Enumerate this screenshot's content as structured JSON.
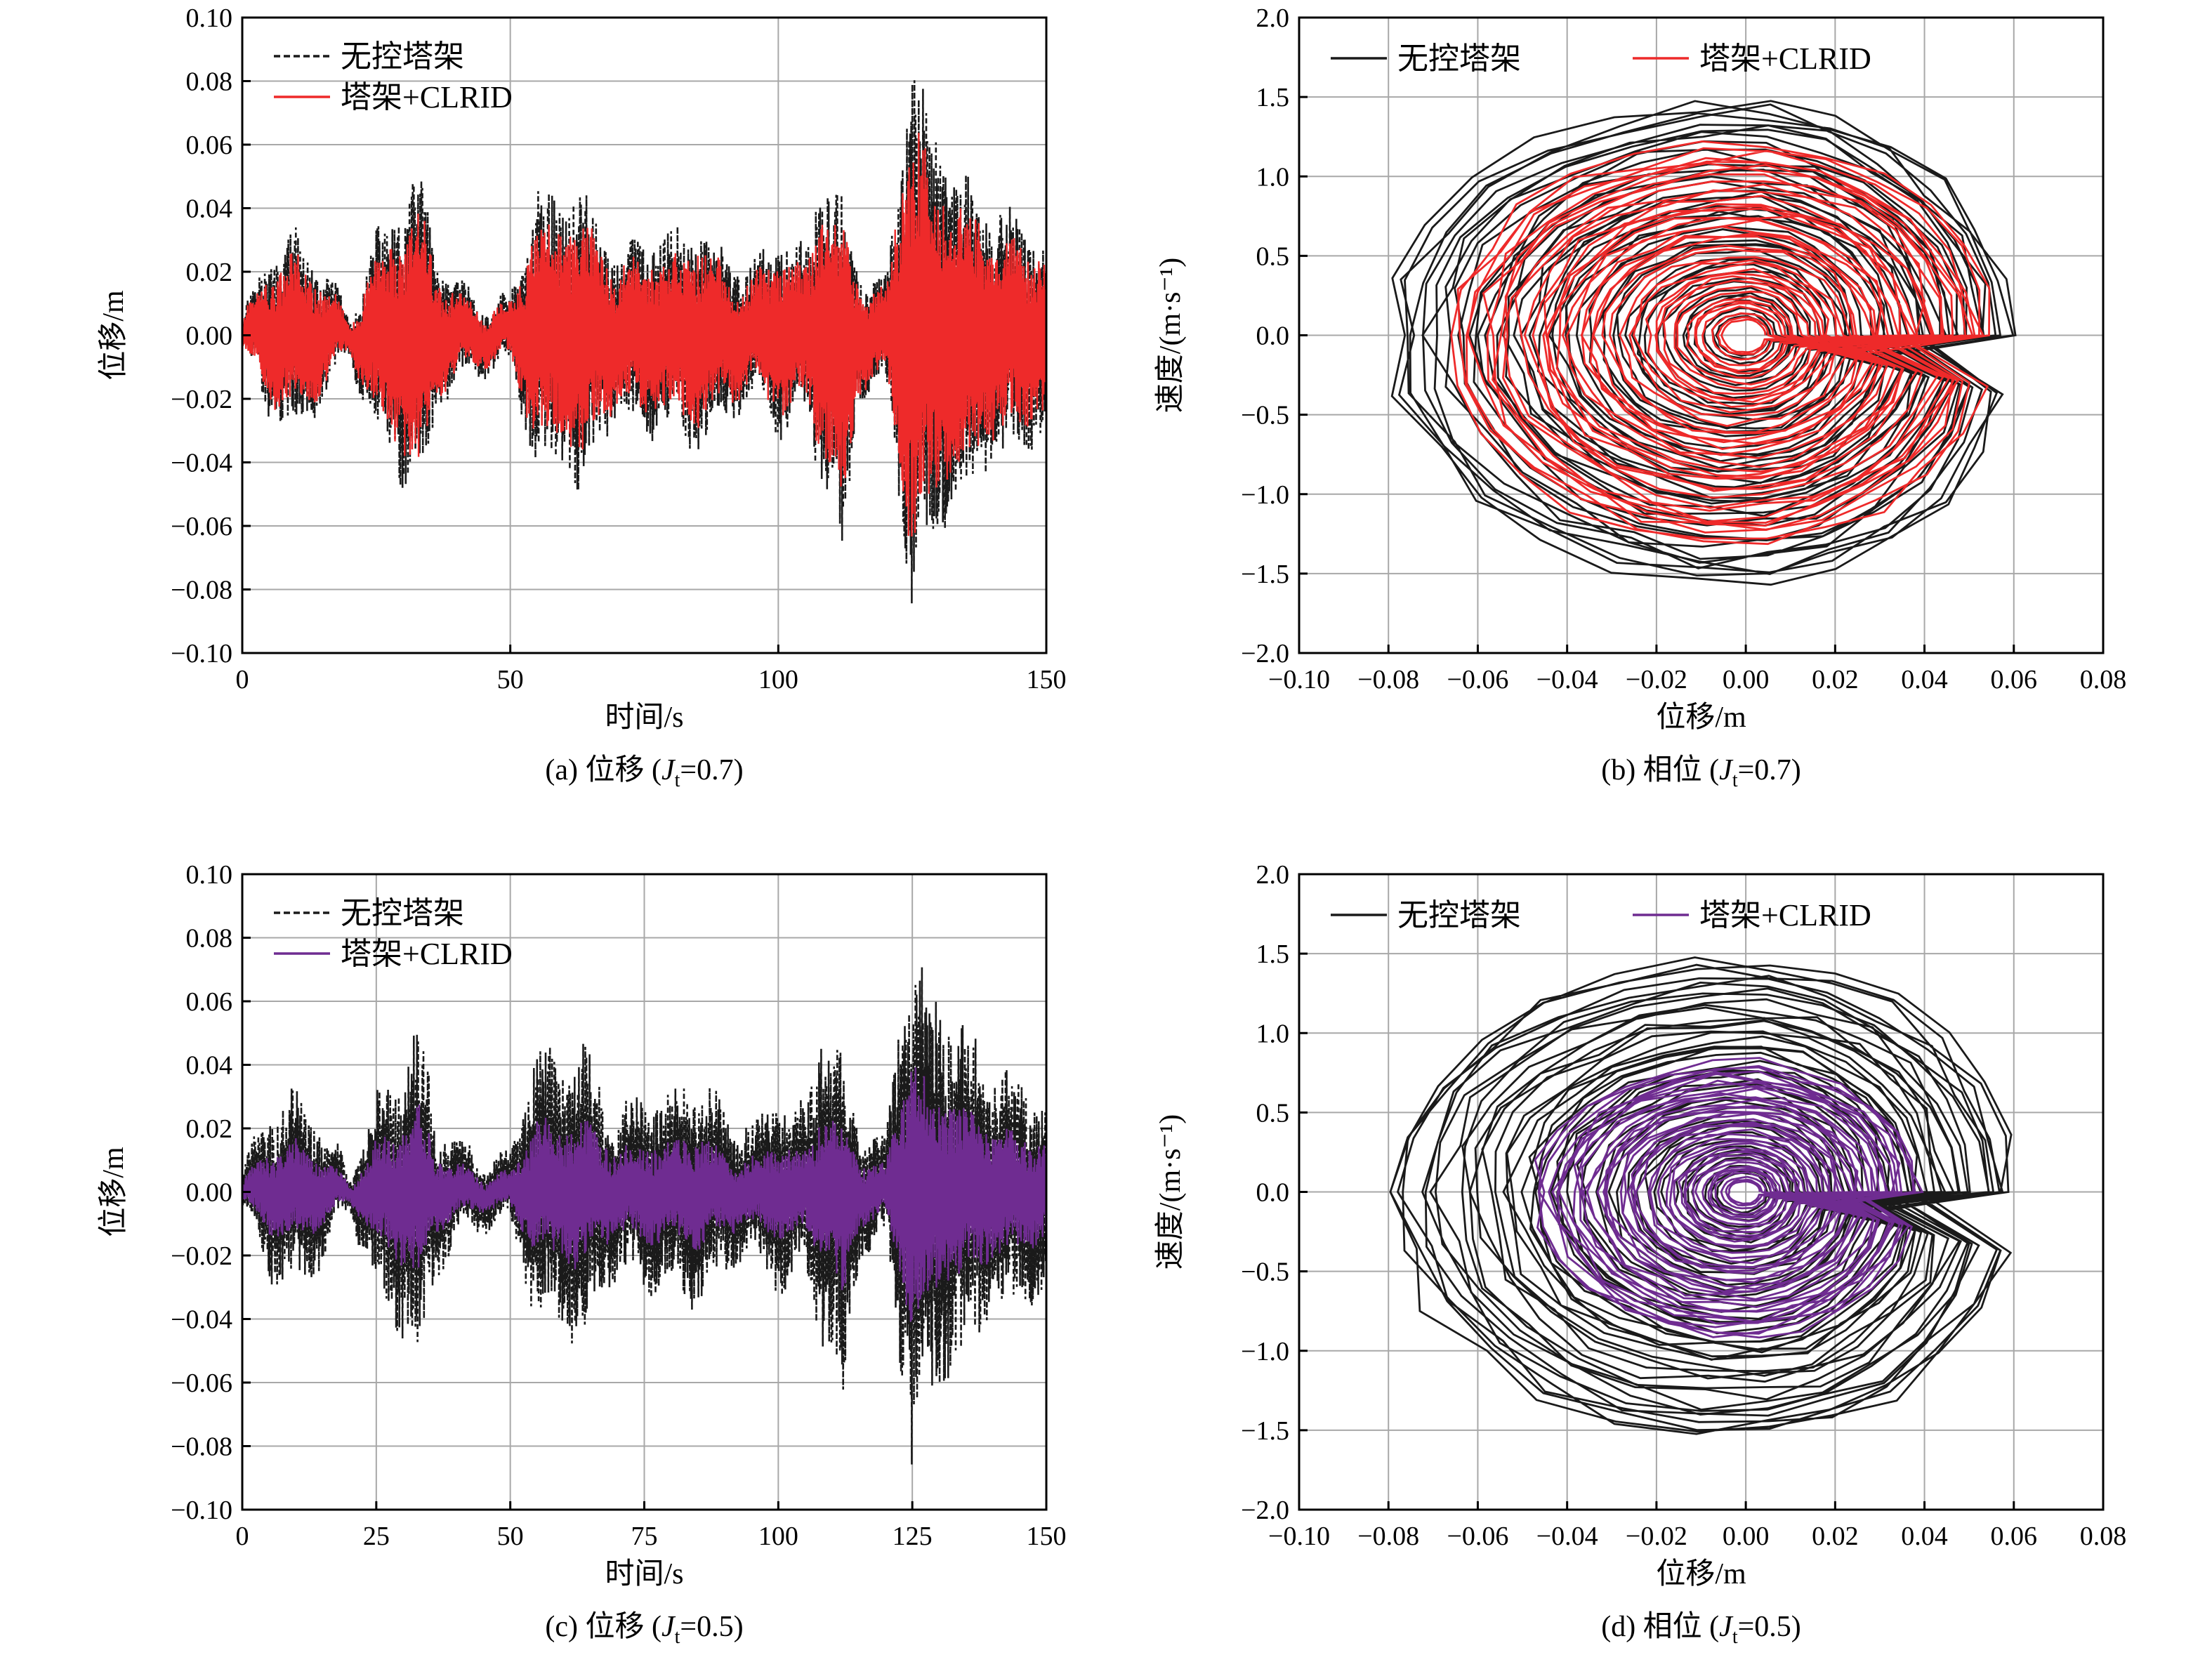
{
  "chart_data": [
    {
      "id": "a",
      "type": "line",
      "caption": {
        "prefix": "(a) 位移 (",
        "sym": "J",
        "sub": "t",
        "suffix": "=0.7)"
      },
      "xlabel": "时间/s",
      "ylabel": "位移/m",
      "xlim": [
        0,
        150
      ],
      "ylim": [
        -0.1,
        0.1
      ],
      "xticks": [
        "0",
        "50",
        "100",
        "150"
      ],
      "yticks": [
        "0.10",
        "0.08",
        "0.06",
        "0.04",
        "0.02",
        "0.00",
        "−0.02",
        "−0.04",
        "−0.06",
        "−0.08",
        "−0.10"
      ],
      "grid": true,
      "legend_position": "top-left",
      "series": [
        {
          "name": "无控塔架",
          "color": "#1a1a1a",
          "style": "dashed",
          "envelope": {
            "t": [
              0,
              5,
              10,
              15,
              20,
              25,
              30,
              33,
              36,
              40,
              45,
              50,
              55,
              60,
              63,
              66,
              70,
              75,
              80,
              85,
              90,
              95,
              100,
              105,
              108,
              110,
              112,
              115,
              120,
              123,
              125,
              127,
              130,
              135,
              140,
              145,
              150
            ],
            "upper": [
              0.005,
              0.025,
              0.03,
              0.02,
              0.005,
              0.03,
              0.04,
              0.052,
              0.025,
              0.015,
              0.01,
              0.01,
              0.045,
              0.04,
              0.048,
              0.035,
              0.025,
              0.03,
              0.03,
              0.035,
              0.025,
              0.02,
              0.03,
              0.025,
              0.05,
              0.045,
              0.04,
              0.02,
              0.015,
              0.06,
              0.084,
              0.075,
              0.06,
              0.05,
              0.04,
              0.035,
              0.03
            ],
            "lower": [
              -0.005,
              -0.025,
              -0.03,
              -0.02,
              -0.005,
              -0.03,
              -0.045,
              -0.052,
              -0.025,
              -0.015,
              -0.01,
              -0.01,
              -0.04,
              -0.04,
              -0.05,
              -0.035,
              -0.025,
              -0.03,
              -0.03,
              -0.035,
              -0.025,
              -0.02,
              -0.03,
              -0.025,
              -0.045,
              -0.05,
              -0.07,
              -0.02,
              -0.015,
              -0.055,
              -0.088,
              -0.07,
              -0.06,
              -0.05,
              -0.04,
              -0.035,
              -0.03
            ]
          }
        },
        {
          "name": "塔架+CLRID",
          "color": "#ee2a2a",
          "style": "solid",
          "envelope_scale": 0.8
        }
      ]
    },
    {
      "id": "b",
      "type": "line",
      "caption": {
        "prefix": "(b) 相位 (",
        "sym": "J",
        "sub": "t",
        "suffix": "=0.7)"
      },
      "xlabel": "位移/m",
      "ylabel": "速度/(m·s⁻¹)",
      "xlim": [
        -0.1,
        0.08
      ],
      "ylim": [
        -2.0,
        2.0
      ],
      "xticks": [
        "−0.10",
        "−0.08",
        "−0.06",
        "−0.04",
        "−0.02",
        "0.00",
        "0.02",
        "0.04",
        "0.06",
        "0.08"
      ],
      "yticks": [
        "2.0",
        "1.5",
        "1.0",
        "0.5",
        "0.0",
        "−0.5",
        "−1.0",
        "−1.5",
        "−2.0"
      ],
      "grid": true,
      "legend_position": "top",
      "series": [
        {
          "name": "无控塔架",
          "color": "#1a1a1a",
          "style": "solid",
          "max_x": [
            -0.082,
            0.065
          ],
          "max_v": [
            -1.65,
            1.55
          ]
        },
        {
          "name": "塔架+CLRID",
          "color": "#ee2a2a",
          "style": "solid",
          "max_x": [
            -0.068,
            0.06
          ],
          "max_v": [
            -1.4,
            1.28
          ]
        }
      ]
    },
    {
      "id": "c",
      "type": "line",
      "caption": {
        "prefix": "(c) 位移 (",
        "sym": "J",
        "sub": "t",
        "suffix": "=0.5)"
      },
      "xlabel": "时间/s",
      "ylabel": "位移/m",
      "xlim": [
        0,
        150
      ],
      "ylim": [
        -0.1,
        0.1
      ],
      "xticks": [
        "0",
        "25",
        "50",
        "75",
        "100",
        "125",
        "150"
      ],
      "yticks": [
        "0.10",
        "0.08",
        "0.06",
        "0.04",
        "0.02",
        "0.00",
        "−0.02",
        "−0.04",
        "−0.06",
        "−0.08",
        "−0.10"
      ],
      "grid": true,
      "legend_position": "top-left",
      "series": [
        {
          "name": "无控塔架",
          "color": "#1a1a1a",
          "style": "dashed",
          "envelope_ref": "a"
        },
        {
          "name": "塔架+CLRID",
          "color": "#6f2c91",
          "style": "solid",
          "envelope_scale": 0.5
        }
      ]
    },
    {
      "id": "d",
      "type": "line",
      "caption": {
        "prefix": "(d) 相位 (",
        "sym": "J",
        "sub": "t",
        "suffix": "=0.5)"
      },
      "xlabel": "位移/m",
      "ylabel": "速度/(m·s⁻¹)",
      "xlim": [
        -0.1,
        0.08
      ],
      "ylim": [
        -2.0,
        2.0
      ],
      "xticks": [
        "−0.10",
        "−0.08",
        "−0.06",
        "−0.04",
        "−0.02",
        "0.00",
        "0.02",
        "0.04",
        "0.06",
        "0.08"
      ],
      "yticks": [
        "2.0",
        "1.5",
        "1.0",
        "0.5",
        "0.0",
        "−0.5",
        "−1.0",
        "−1.5",
        "−2.0"
      ],
      "grid": true,
      "legend_position": "top",
      "series": [
        {
          "name": "无控塔架",
          "color": "#1a1a1a",
          "style": "solid",
          "max_x": [
            -0.082,
            0.065
          ],
          "max_v": [
            -1.65,
            1.55
          ]
        },
        {
          "name": "塔架+CLRID",
          "color": "#6f2c91",
          "style": "solid",
          "max_x": [
            -0.048,
            0.043
          ],
          "max_v": [
            -0.98,
            0.87
          ]
        }
      ]
    }
  ]
}
